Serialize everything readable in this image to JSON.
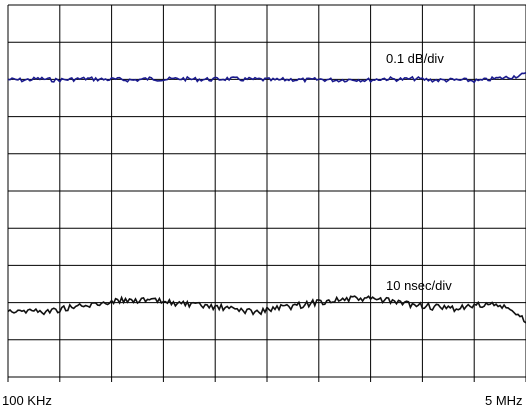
{
  "chart_data": {
    "type": "line",
    "x_start_label": "100 KHz",
    "x_end_label": "5 MHz",
    "grid": true,
    "divisions": {
      "x": 10,
      "y": 10
    },
    "series": [
      {
        "name": "0.1 dB/div",
        "color": "#1a1a8c",
        "y_division": 2.0,
        "values": [
          2.0,
          2.02,
          1.98,
          2.02,
          2.0,
          1.98,
          2.0,
          2.0,
          2.02,
          1.98,
          2.0,
          1.98,
          2.0,
          2.0,
          1.98,
          2.0,
          2.0,
          2.02,
          2.0,
          2.02,
          2.0,
          2.02,
          2.0,
          2.02,
          1.98,
          2.0,
          1.98,
          2.02,
          2.02,
          2.02,
          2.04,
          1.98,
          1.94,
          1.86
        ]
      },
      {
        "name": "10 nsec/div",
        "color": "#111111",
        "y_division": 8.0,
        "values": [
          8.2,
          8.22,
          8.24,
          8.12,
          8.08,
          7.96,
          7.92,
          7.96,
          8.0,
          8.08,
          8.12,
          8.18,
          8.26,
          8.14,
          8.08,
          7.98,
          7.92,
          7.9,
          7.92,
          8.02,
          8.08,
          8.16,
          8.14,
          8.04,
          8.12,
          8.5
        ]
      }
    ]
  }
}
